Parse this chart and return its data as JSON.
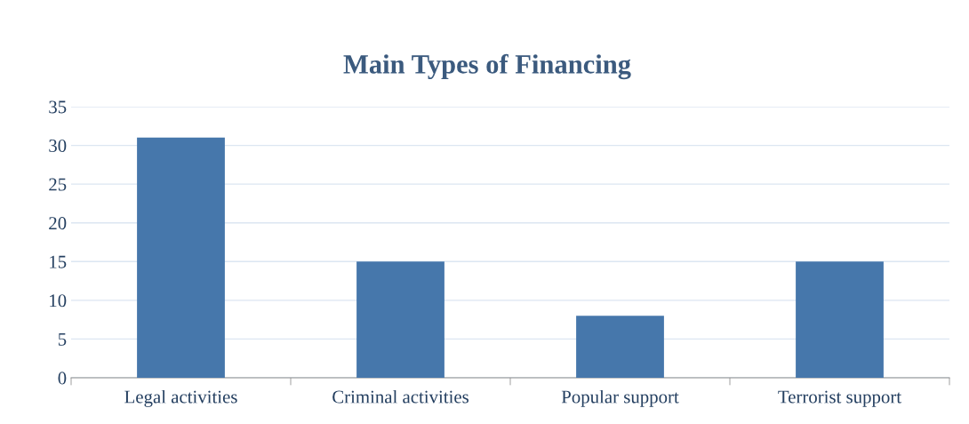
{
  "chart_data": {
    "type": "bar",
    "title": "Main Types of Financing",
    "categories": [
      "Legal activities",
      "Criminal activities",
      "Popular support",
      "Terrorist support"
    ],
    "values": [
      31,
      15,
      8,
      15
    ],
    "color": "#4677ab",
    "ylim": [
      0,
      35
    ],
    "yticks": [
      0,
      5,
      10,
      15,
      20,
      25,
      30,
      35
    ],
    "grid": "y",
    "legend": false
  }
}
